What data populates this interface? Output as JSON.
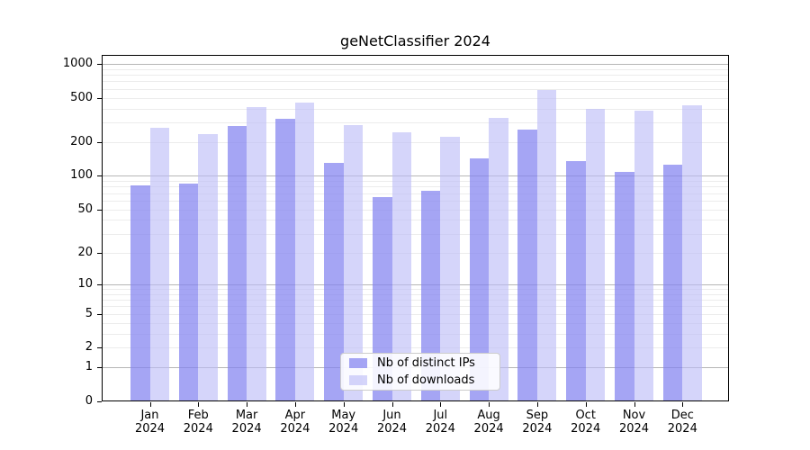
{
  "title": "geNetClassifier 2024",
  "chart_data": {
    "type": "bar",
    "title": "geNetClassifier 2024",
    "categories": [
      "Jan",
      "Feb",
      "Mar",
      "Apr",
      "May",
      "Jun",
      "Jul",
      "Aug",
      "Sep",
      "Oct",
      "Nov",
      "Dec"
    ],
    "year_label": "2024",
    "series": [
      {
        "name": "Nb of distinct IPs",
        "color": "rgba(130,130,240,0.72)",
        "values": [
          83,
          85,
          280,
          325,
          132,
          65,
          74,
          143,
          258,
          135,
          108,
          127
        ]
      },
      {
        "name": "Nb of downloads",
        "color": "rgba(187,187,247,0.62)",
        "values": [
          270,
          235,
          410,
          452,
          285,
          247,
          224,
          330,
          585,
          400,
          380,
          430
        ]
      }
    ],
    "yscale": "log1p",
    "ylim": [
      0,
      1000
    ],
    "yticks": [
      0,
      1,
      2,
      5,
      10,
      20,
      50,
      100,
      200,
      500,
      1000
    ],
    "major_gridline_values": [
      1,
      10,
      100,
      1000
    ],
    "grid": true,
    "legend_position": "inside-bottom-center",
    "legend_items": [
      "Nb of distinct IPs",
      "Nb of downloads"
    ],
    "colors": {
      "frame": "#000000",
      "gridline_major": "#b6b6b6",
      "gridline_minor": "#ececec",
      "tick": "#000000"
    }
  }
}
